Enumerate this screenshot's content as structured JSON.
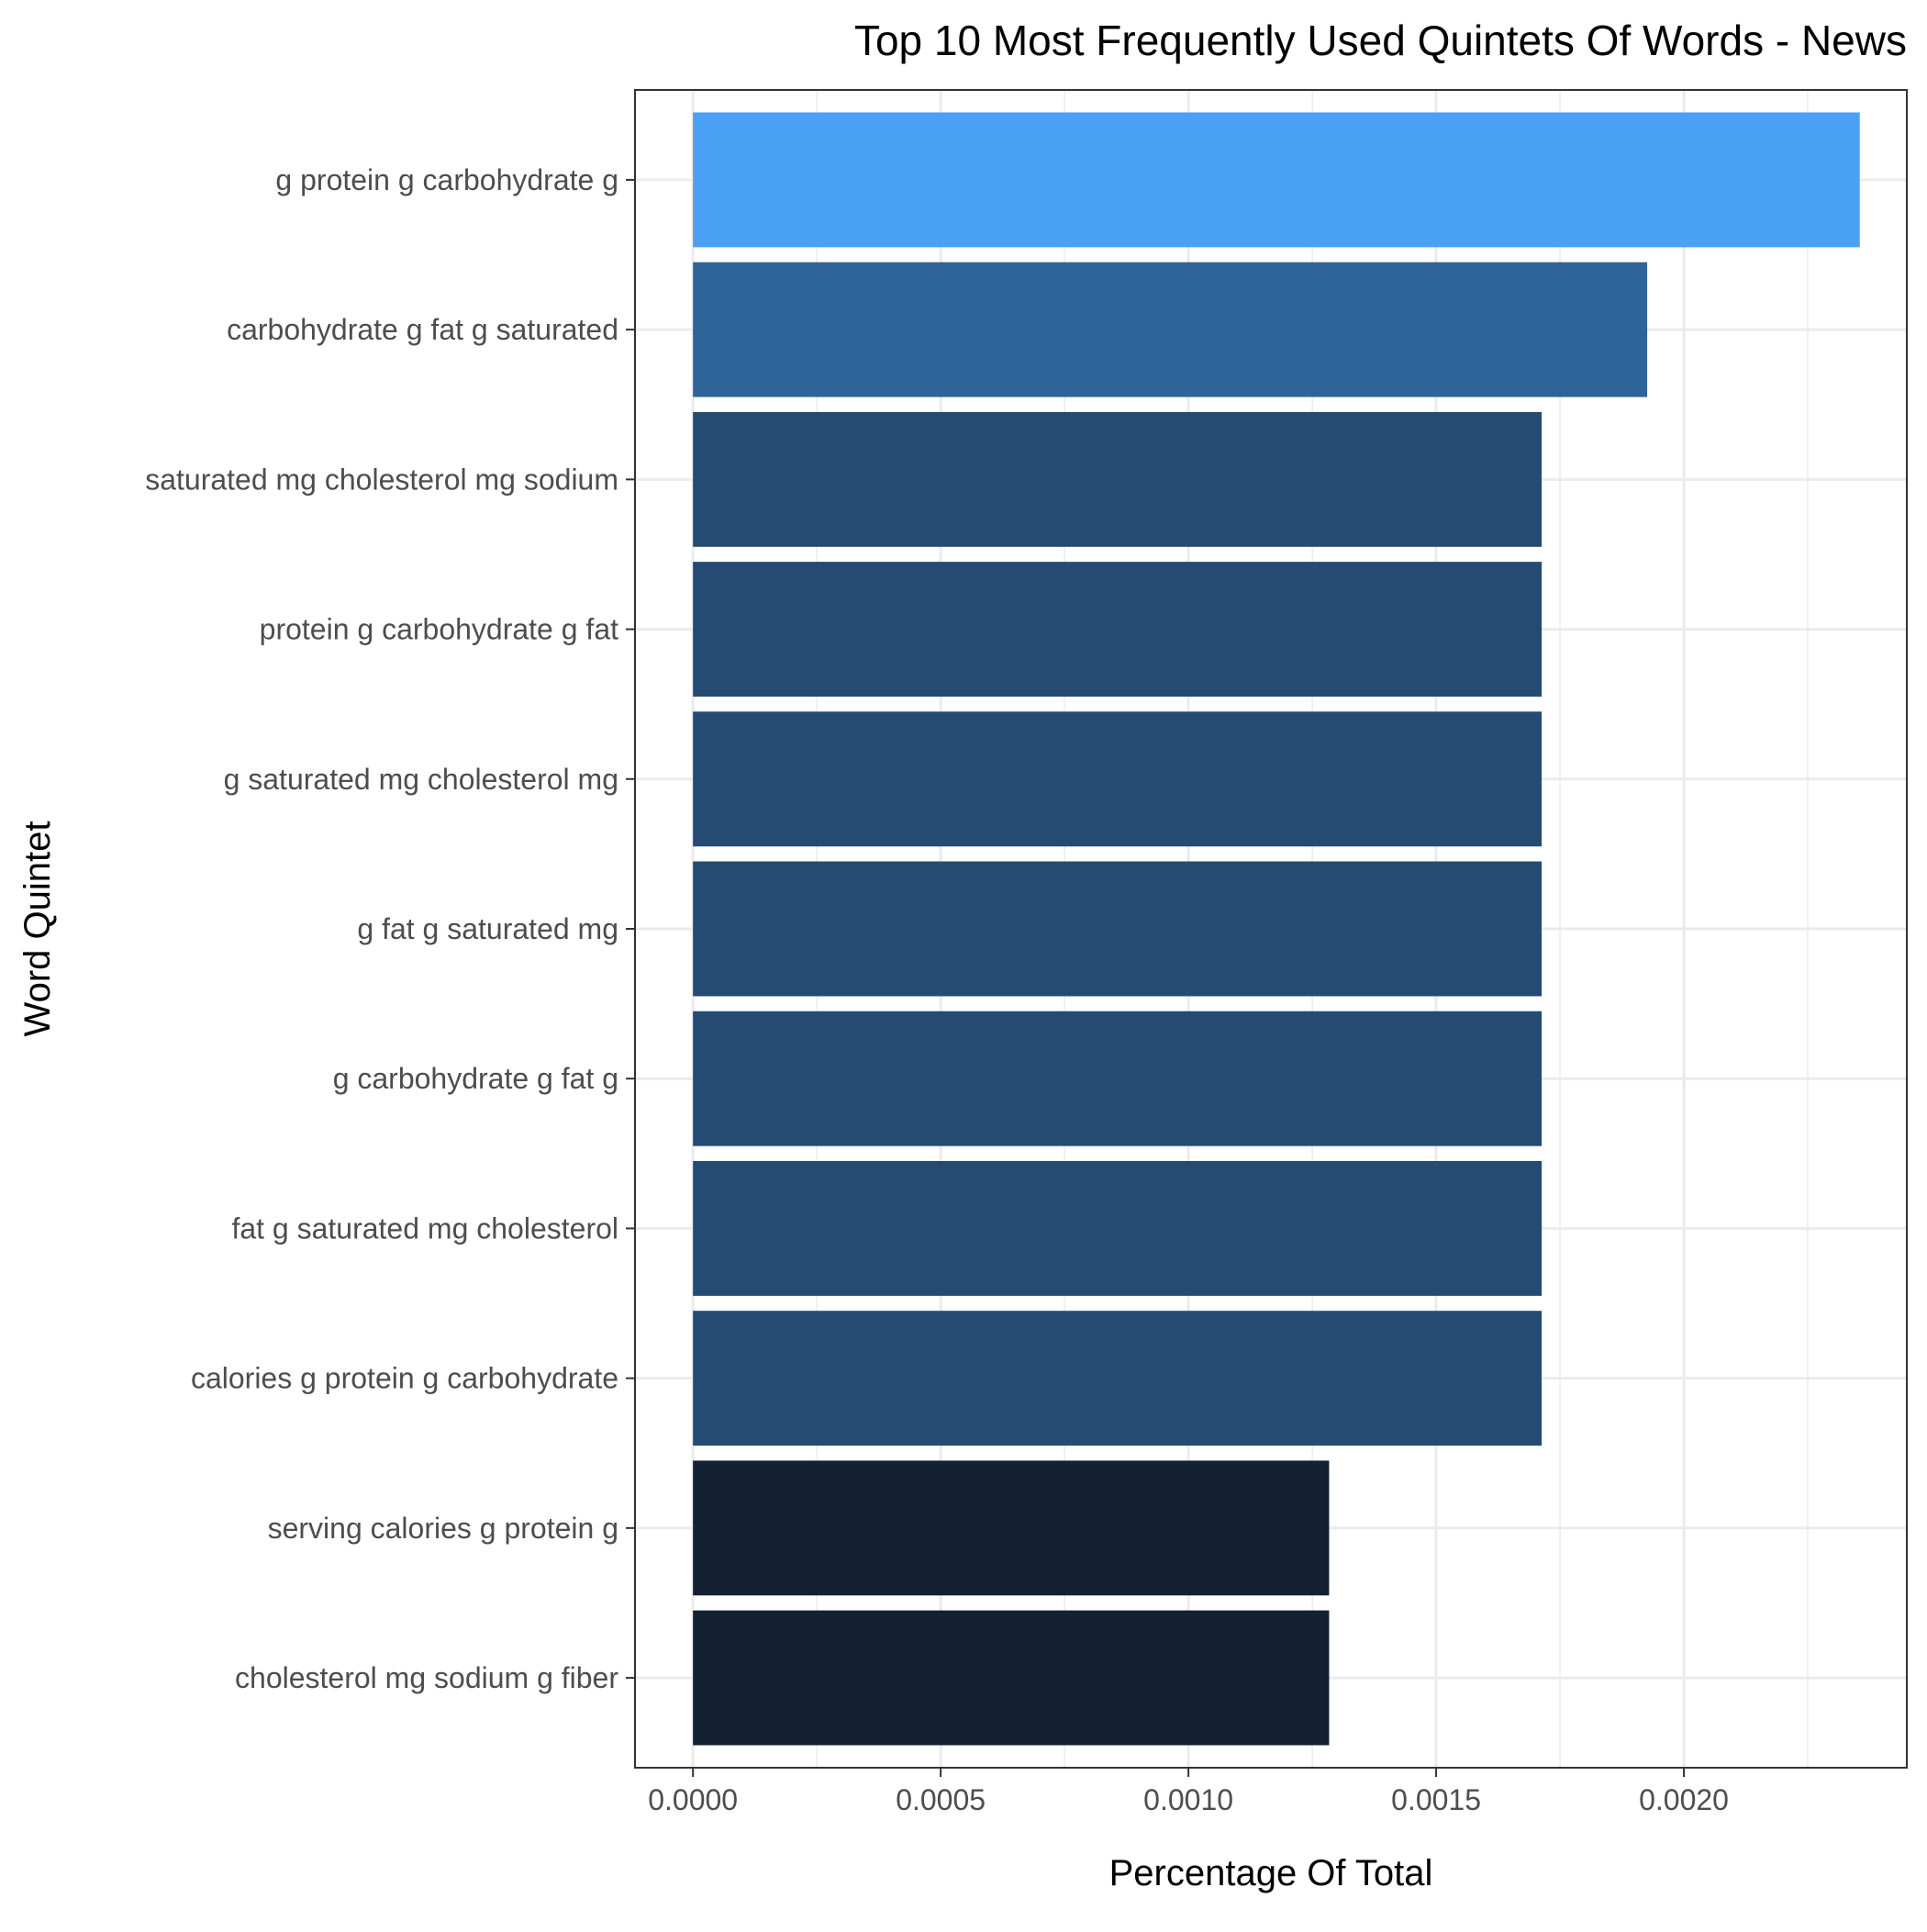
{
  "chart_data": {
    "type": "bar",
    "orientation": "horizontal",
    "title": "Top 10 Most Frequently Used Quintets Of Words - News",
    "xlabel": "Percentage Of Total",
    "ylabel": "Word Quintet",
    "xlim": [
      -0.000117,
      0.00245
    ],
    "xticks": [
      "0.0000",
      "0.0005",
      "0.0010",
      "0.0015",
      "0.0020"
    ],
    "xtick_values": [
      0,
      0.0005,
      0.001,
      0.0015,
      0.002
    ],
    "grid": true,
    "legend": "none",
    "categories": [
      "g protein g carbohydrate g",
      "carbohydrate g fat g saturated",
      "saturated mg cholesterol mg sodium",
      "protein g carbohydrate g fat",
      "g saturated mg cholesterol mg",
      "g fat g saturated mg",
      "g carbohydrate g fat g",
      "fat g saturated mg cholesterol",
      "calories g protein g carbohydrate",
      "serving calories g protein g",
      "cholesterol mg sodium g fiber"
    ],
    "values": [
      0.002355,
      0.001926,
      0.001713,
      0.001713,
      0.001713,
      0.001713,
      0.001713,
      0.001713,
      0.001713,
      0.001284,
      0.001284
    ],
    "colors": [
      "#4aa0f5",
      "#2f6498",
      "#254b72",
      "#254b72",
      "#254b72",
      "#254b72",
      "#254b72",
      "#254b72",
      "#254b72",
      "#132133",
      "#132133"
    ]
  }
}
